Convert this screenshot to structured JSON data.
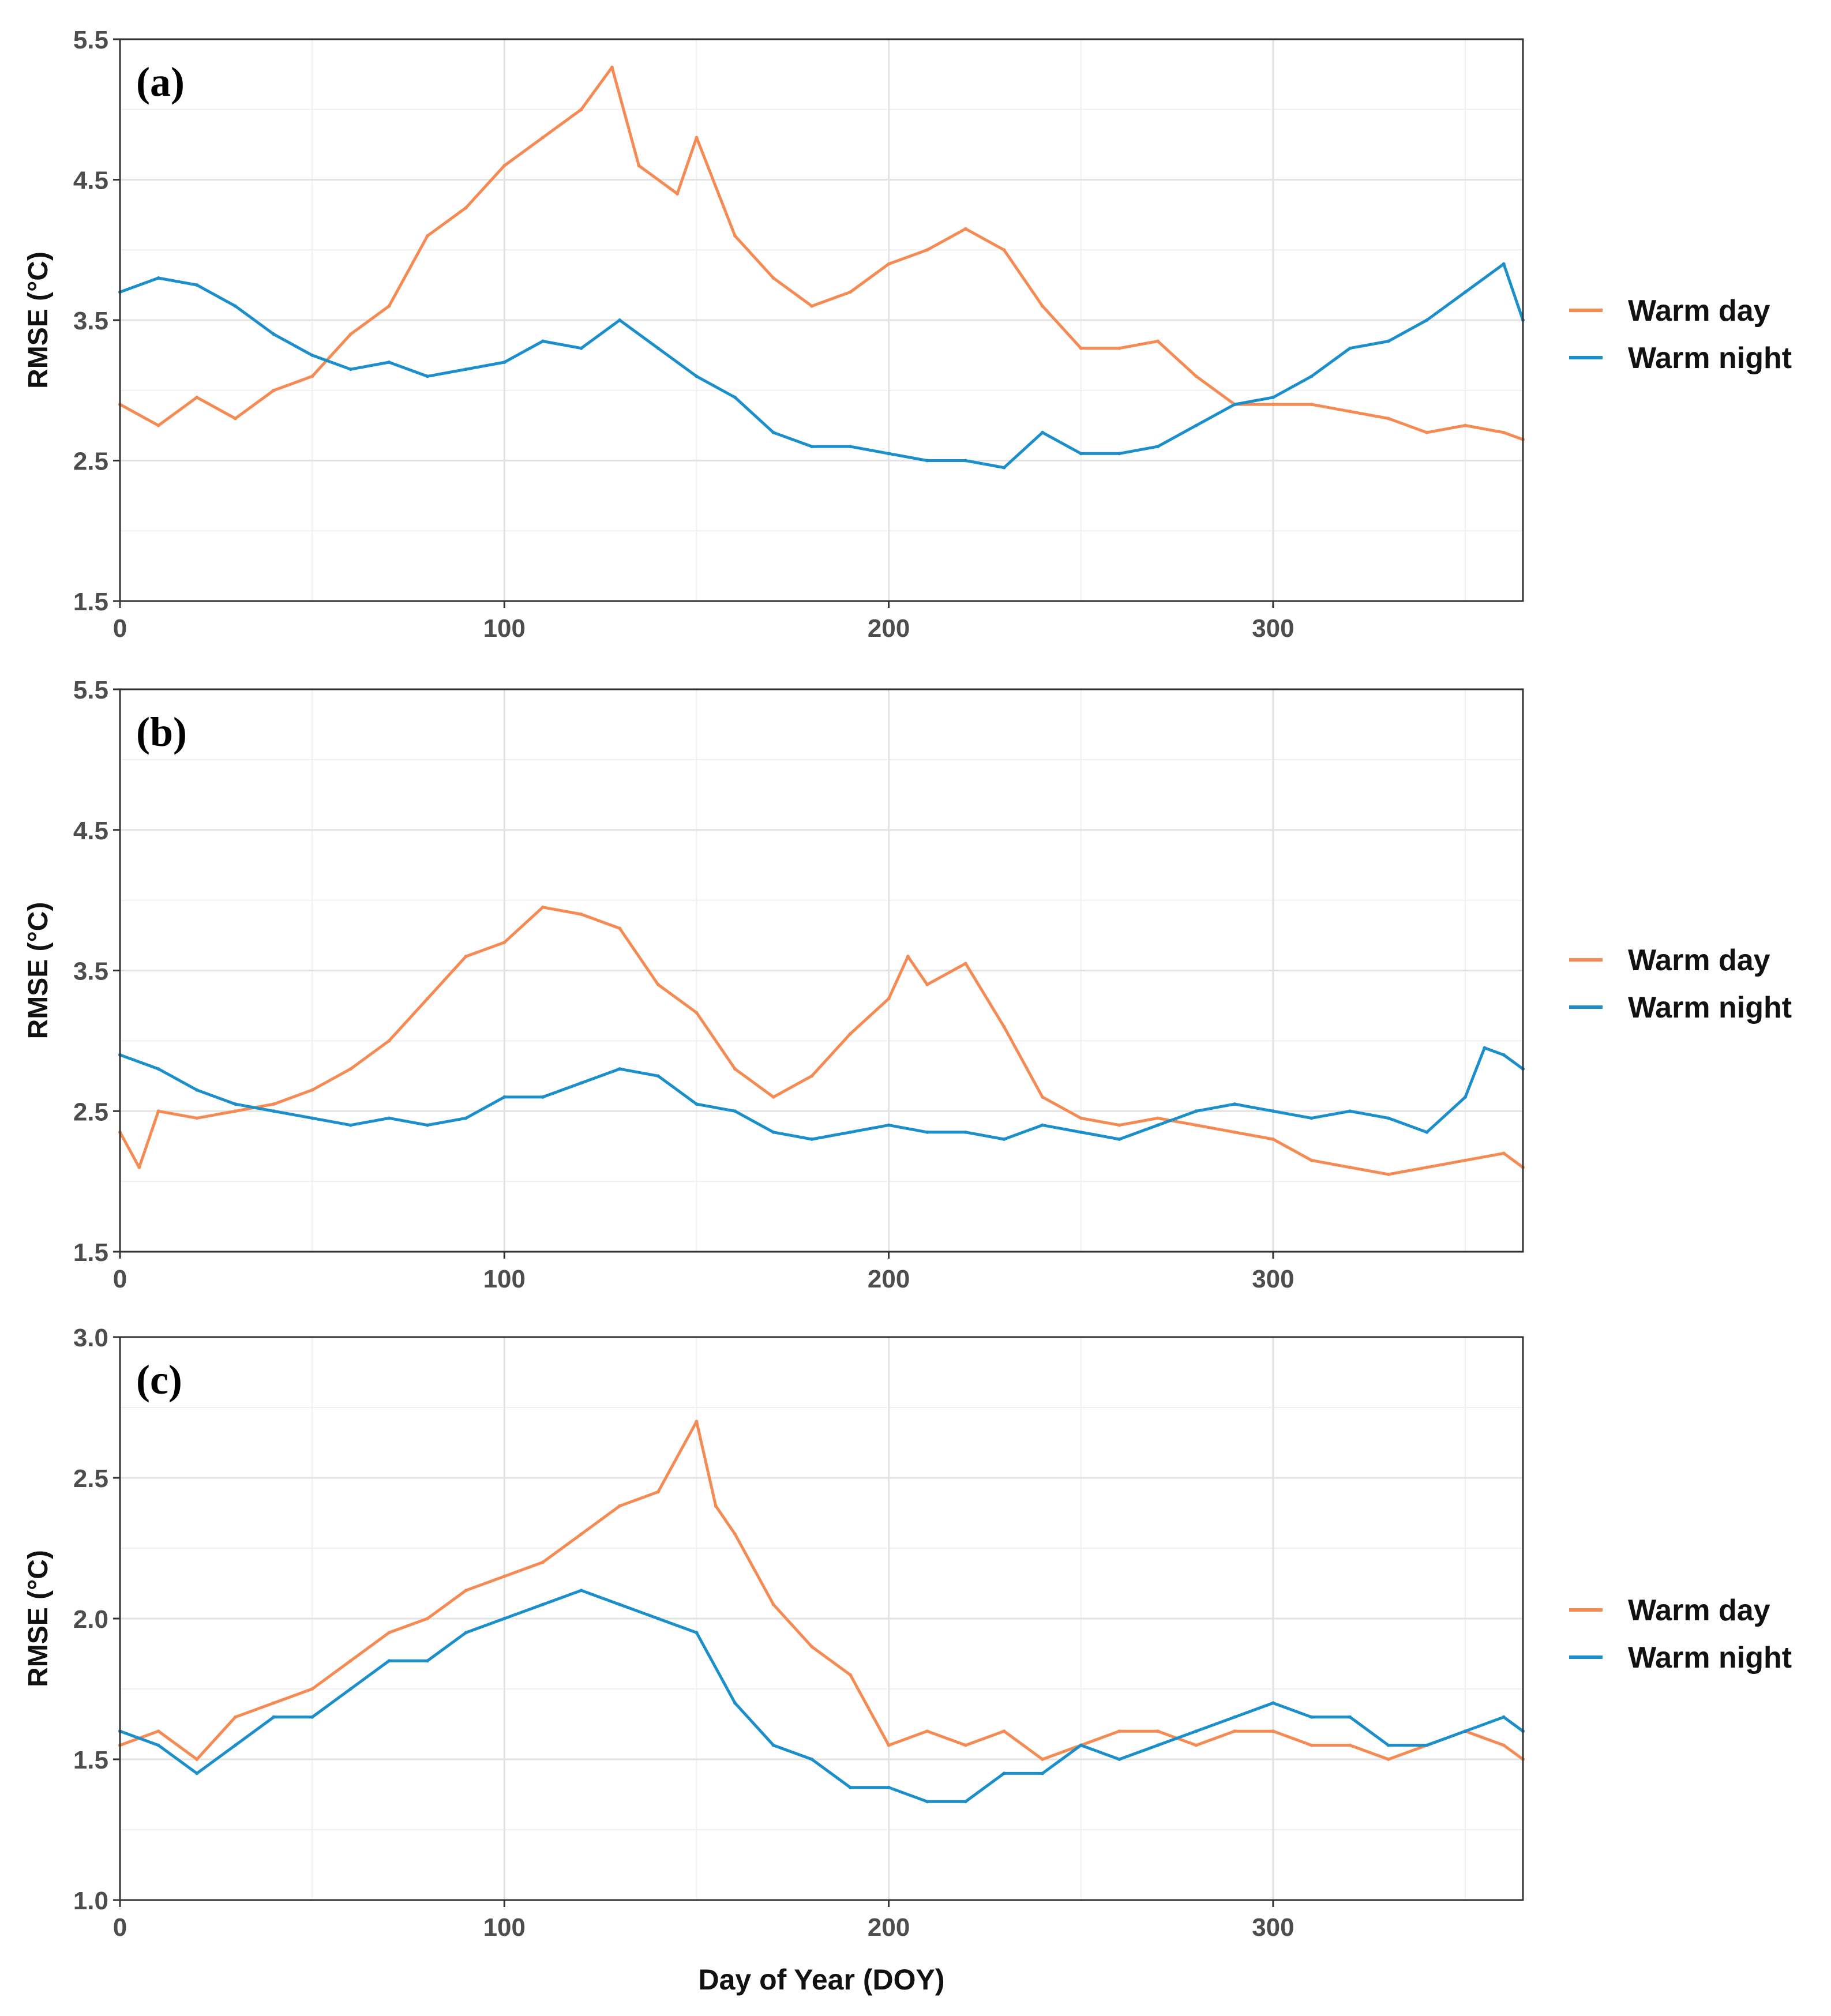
{
  "colors": {
    "warm_day": "#F58A53",
    "warm_night": "#1A8FCC"
  },
  "chart_data": [
    {
      "type": "line",
      "panel_label": "(a)",
      "xlabel": "",
      "ylabel": "RMSE (°C)",
      "xlim": [
        0,
        365
      ],
      "ylim": [
        1.5,
        5.5
      ],
      "xticks": [
        0,
        100,
        200,
        300
      ],
      "yticks": [
        1.5,
        2.5,
        3.5,
        4.5,
        5.5
      ],
      "legend": "right",
      "series": [
        {
          "name": "Warm day",
          "x": [
            0,
            10,
            20,
            30,
            40,
            50,
            60,
            70,
            80,
            90,
            100,
            110,
            120,
            128,
            135,
            145,
            150,
            160,
            170,
            180,
            190,
            200,
            210,
            220,
            230,
            240,
            250,
            260,
            270,
            280,
            290,
            300,
            310,
            320,
            330,
            340,
            350,
            360,
            365
          ],
          "y": [
            2.9,
            2.75,
            2.95,
            2.8,
            3.0,
            3.1,
            3.4,
            3.6,
            4.1,
            4.3,
            4.6,
            4.8,
            5.0,
            5.3,
            4.6,
            4.4,
            4.8,
            4.1,
            3.8,
            3.6,
            3.7,
            3.9,
            4.0,
            4.15,
            4.0,
            3.6,
            3.3,
            3.3,
            3.35,
            3.1,
            2.9,
            2.9,
            2.9,
            2.85,
            2.8,
            2.7,
            2.75,
            2.7,
            2.65
          ]
        },
        {
          "name": "Warm night",
          "x": [
            0,
            10,
            20,
            30,
            40,
            50,
            60,
            70,
            80,
            90,
            100,
            110,
            120,
            130,
            140,
            150,
            160,
            170,
            180,
            190,
            200,
            210,
            220,
            230,
            240,
            250,
            260,
            270,
            280,
            290,
            300,
            310,
            320,
            330,
            340,
            350,
            360,
            365
          ],
          "y": [
            3.7,
            3.8,
            3.75,
            3.6,
            3.4,
            3.25,
            3.15,
            3.2,
            3.1,
            3.15,
            3.2,
            3.35,
            3.3,
            3.5,
            3.3,
            3.1,
            2.95,
            2.7,
            2.6,
            2.6,
            2.55,
            2.5,
            2.5,
            2.45,
            2.7,
            2.55,
            2.55,
            2.6,
            2.75,
            2.9,
            2.95,
            3.1,
            3.3,
            3.35,
            3.5,
            3.7,
            3.9,
            3.5
          ]
        }
      ]
    },
    {
      "type": "line",
      "panel_label": "(b)",
      "xlabel": "",
      "ylabel": "RMSE (°C)",
      "xlim": [
        0,
        365
      ],
      "ylim": [
        1.5,
        5.5
      ],
      "xticks": [
        0,
        100,
        200,
        300
      ],
      "yticks": [
        1.5,
        2.5,
        3.5,
        4.5,
        5.5
      ],
      "legend": "right",
      "series": [
        {
          "name": "Warm day",
          "x": [
            0,
            5,
            10,
            20,
            30,
            40,
            50,
            60,
            70,
            80,
            90,
            100,
            110,
            120,
            130,
            140,
            150,
            160,
            170,
            180,
            190,
            200,
            205,
            210,
            220,
            230,
            240,
            250,
            260,
            270,
            280,
            290,
            300,
            310,
            320,
            330,
            340,
            350,
            360,
            365
          ],
          "y": [
            2.35,
            2.1,
            2.5,
            2.45,
            2.5,
            2.55,
            2.65,
            2.8,
            3.0,
            3.3,
            3.6,
            3.7,
            3.95,
            3.9,
            3.8,
            3.4,
            3.2,
            2.8,
            2.6,
            2.75,
            3.05,
            3.3,
            3.6,
            3.4,
            3.55,
            3.1,
            2.6,
            2.45,
            2.4,
            2.45,
            2.4,
            2.35,
            2.3,
            2.15,
            2.1,
            2.05,
            2.1,
            2.15,
            2.2,
            2.1
          ]
        },
        {
          "name": "Warm night",
          "x": [
            0,
            10,
            20,
            30,
            40,
            50,
            60,
            70,
            80,
            90,
            100,
            110,
            120,
            130,
            140,
            150,
            160,
            170,
            180,
            190,
            200,
            210,
            220,
            230,
            240,
            250,
            260,
            270,
            280,
            290,
            300,
            310,
            320,
            330,
            340,
            350,
            355,
            360,
            365
          ],
          "y": [
            2.9,
            2.8,
            2.65,
            2.55,
            2.5,
            2.45,
            2.4,
            2.45,
            2.4,
            2.45,
            2.6,
            2.6,
            2.7,
            2.8,
            2.75,
            2.55,
            2.5,
            2.35,
            2.3,
            2.35,
            2.4,
            2.35,
            2.35,
            2.3,
            2.4,
            2.35,
            2.3,
            2.4,
            2.5,
            2.55,
            2.5,
            2.45,
            2.5,
            2.45,
            2.35,
            2.6,
            2.95,
            2.9,
            2.8
          ]
        }
      ]
    },
    {
      "type": "line",
      "panel_label": "(c)",
      "xlabel": "Day of Year (DOY)",
      "ylabel": "RMSE (°C)",
      "xlim": [
        0,
        365
      ],
      "ylim": [
        1.0,
        3.0
      ],
      "xticks": [
        0,
        100,
        200,
        300
      ],
      "yticks": [
        1.0,
        1.5,
        2.0,
        2.5,
        3.0
      ],
      "legend": "right",
      "series": [
        {
          "name": "Warm day",
          "x": [
            0,
            10,
            20,
            30,
            40,
            50,
            60,
            70,
            80,
            90,
            100,
            110,
            120,
            130,
            140,
            150,
            155,
            160,
            170,
            180,
            190,
            200,
            210,
            220,
            230,
            240,
            250,
            260,
            270,
            280,
            290,
            300,
            310,
            320,
            330,
            340,
            350,
            360,
            365
          ],
          "y": [
            1.55,
            1.6,
            1.5,
            1.65,
            1.7,
            1.75,
            1.85,
            1.95,
            2.0,
            2.1,
            2.15,
            2.2,
            2.3,
            2.4,
            2.45,
            2.7,
            2.4,
            2.3,
            2.05,
            1.9,
            1.8,
            1.55,
            1.6,
            1.55,
            1.6,
            1.5,
            1.55,
            1.6,
            1.6,
            1.55,
            1.6,
            1.6,
            1.55,
            1.55,
            1.5,
            1.55,
            1.6,
            1.55,
            1.5
          ]
        },
        {
          "name": "Warm night",
          "x": [
            0,
            10,
            20,
            30,
            40,
            50,
            60,
            70,
            80,
            90,
            100,
            110,
            120,
            130,
            140,
            150,
            160,
            170,
            180,
            190,
            200,
            210,
            220,
            230,
            240,
            250,
            260,
            270,
            280,
            290,
            300,
            310,
            320,
            330,
            340,
            350,
            360,
            365
          ],
          "y": [
            1.6,
            1.55,
            1.45,
            1.55,
            1.65,
            1.65,
            1.75,
            1.85,
            1.85,
            1.95,
            2.0,
            2.05,
            2.1,
            2.05,
            2.0,
            1.95,
            1.7,
            1.55,
            1.5,
            1.4,
            1.4,
            1.35,
            1.35,
            1.45,
            1.45,
            1.55,
            1.5,
            1.55,
            1.6,
            1.65,
            1.7,
            1.65,
            1.65,
            1.55,
            1.55,
            1.6,
            1.65,
            1.6
          ]
        }
      ]
    }
  ]
}
